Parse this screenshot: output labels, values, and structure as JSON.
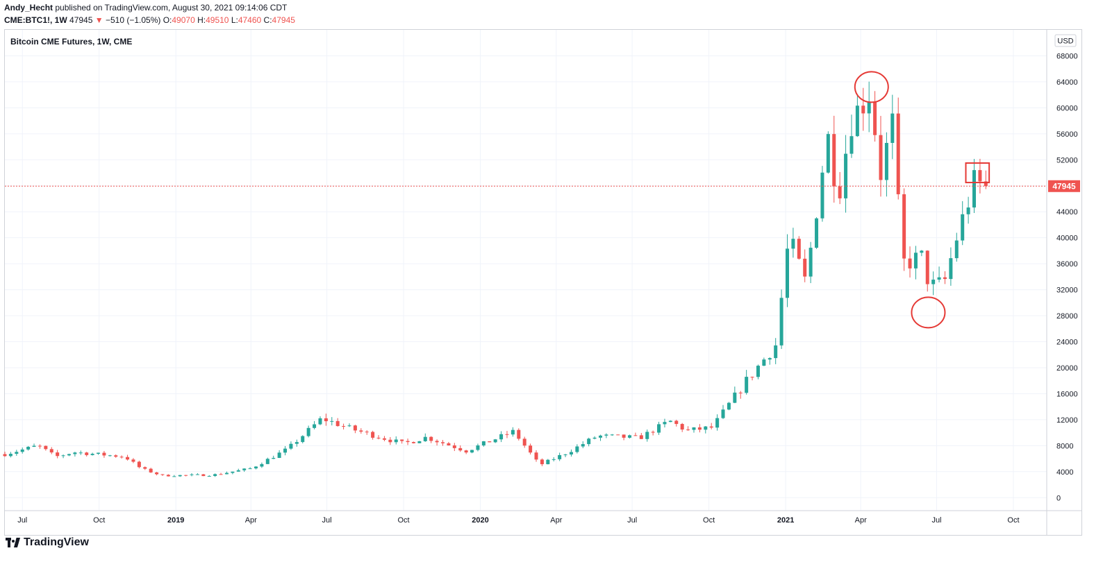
{
  "header": {
    "author": "Andy_Hecht",
    "published_text": "published on TradingView.com, August 30, 2021 09:14:06 CDT",
    "symbol": "CME:BTC1!, 1W",
    "last_price": "47945",
    "change_arrow": "▼",
    "change_text": "−510 (−1.05%)",
    "o_label": "O:",
    "o_value": "49070",
    "h_label": "H:",
    "h_value": "49510",
    "l_label": "L:",
    "l_value": "47460",
    "c_label": "C:",
    "c_value": "47945"
  },
  "chart_title": "Bitcoin CME Futures, 1W, CME",
  "currency_badge": "USD",
  "price_label": "47945",
  "brand": "TradingView",
  "colors": {
    "up": "#26a69a",
    "down": "#ef5350",
    "grid": "#f0f3fa",
    "axis_text": "#131722",
    "annotation": "#e53935"
  },
  "chart_data": {
    "type": "candlestick",
    "title": "Bitcoin CME Futures, 1W, CME",
    "ylim": [
      -2000,
      72000
    ],
    "y_ticks": [
      0,
      4000,
      8000,
      12000,
      16000,
      20000,
      24000,
      28000,
      32000,
      36000,
      40000,
      44000,
      48000,
      52000,
      56000,
      60000,
      64000,
      68000
    ],
    "x_ticks": [
      {
        "label": "Jul",
        "date": "2018-07-01"
      },
      {
        "label": "Oct",
        "date": "2018-10-01"
      },
      {
        "label": "2019",
        "date": "2019-01-01",
        "bold": true
      },
      {
        "label": "Apr",
        "date": "2019-04-01"
      },
      {
        "label": "Jul",
        "date": "2019-07-01"
      },
      {
        "label": "Oct",
        "date": "2019-10-01"
      },
      {
        "label": "2020",
        "date": "2020-01-01",
        "bold": true
      },
      {
        "label": "Apr",
        "date": "2020-04-01"
      },
      {
        "label": "Jul",
        "date": "2020-07-01"
      },
      {
        "label": "Oct",
        "date": "2020-10-01"
      },
      {
        "label": "2021",
        "date": "2021-01-01",
        "bold": true
      },
      {
        "label": "Apr",
        "date": "2021-04-01"
      },
      {
        "label": "Jul",
        "date": "2021-07-01"
      },
      {
        "label": "Oct",
        "date": "2021-10-01"
      }
    ],
    "x_start": "2018-06-10",
    "x_end": "2021-11-10",
    "last_price": 47945,
    "series_keyframes": [
      {
        "date": "2018-06-10",
        "close": 6700
      },
      {
        "date": "2018-07-20",
        "close": 8000
      },
      {
        "date": "2018-08-10",
        "close": 6300
      },
      {
        "date": "2018-09-01",
        "close": 7000
      },
      {
        "date": "2018-11-01",
        "close": 6300
      },
      {
        "date": "2018-11-20",
        "close": 4500
      },
      {
        "date": "2018-12-15",
        "close": 3400
      },
      {
        "date": "2019-02-15",
        "close": 3500
      },
      {
        "date": "2019-04-01",
        "close": 4500
      },
      {
        "date": "2019-05-15",
        "close": 7500
      },
      {
        "date": "2019-06-25",
        "close": 12200
      },
      {
        "date": "2019-08-01",
        "close": 10500
      },
      {
        "date": "2019-10-01",
        "close": 8300
      },
      {
        "date": "2019-10-28",
        "close": 9300
      },
      {
        "date": "2019-12-15",
        "close": 7200
      },
      {
        "date": "2020-02-10",
        "close": 10200
      },
      {
        "date": "2020-03-12",
        "close": 5000
      },
      {
        "date": "2020-04-15",
        "close": 7000
      },
      {
        "date": "2020-05-20",
        "close": 9500
      },
      {
        "date": "2020-07-10",
        "close": 9200
      },
      {
        "date": "2020-08-15",
        "close": 11800
      },
      {
        "date": "2020-09-05",
        "close": 10300
      },
      {
        "date": "2020-10-05",
        "close": 10800
      },
      {
        "date": "2020-11-15",
        "close": 18000
      },
      {
        "date": "2020-12-20",
        "close": 23500
      },
      {
        "date": "2021-01-05",
        "close": 40000
      },
      {
        "date": "2021-01-25",
        "close": 33000
      },
      {
        "date": "2021-02-20",
        "close": 56000
      },
      {
        "date": "2021-03-05",
        "close": 46500
      },
      {
        "date": "2021-03-20",
        "close": 58000
      },
      {
        "date": "2021-04-12",
        "close": 62500
      },
      {
        "date": "2021-04-25",
        "close": 50000
      },
      {
        "date": "2021-05-10",
        "close": 58000
      },
      {
        "date": "2021-05-20",
        "close": 36000
      },
      {
        "date": "2021-06-15",
        "close": 37000
      },
      {
        "date": "2021-06-22",
        "close": 32500
      },
      {
        "date": "2021-07-10",
        "close": 33000
      },
      {
        "date": "2021-07-25",
        "close": 40000
      },
      {
        "date": "2021-08-15",
        "close": 48500
      },
      {
        "date": "2021-08-30",
        "close": 47945
      }
    ],
    "annotations": [
      {
        "shape": "ellipse",
        "date": "2021-04-14",
        "value": 63200
      },
      {
        "shape": "ellipse",
        "date": "2021-06-21",
        "value": 28500
      },
      {
        "shape": "rect",
        "date_from": "2021-08-05",
        "date_to": "2021-09-02",
        "value_from": 48500,
        "value_to": 51500
      }
    ]
  }
}
